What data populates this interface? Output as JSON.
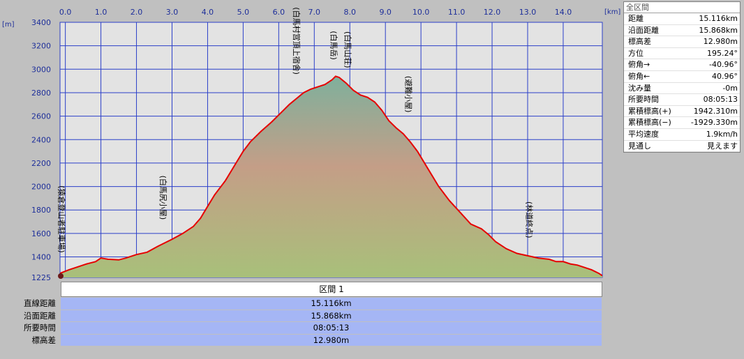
{
  "chart_data": {
    "type": "area",
    "x_unit": "[km]",
    "y_unit": "[m]",
    "xlim": [
      -0.15,
      15.1
    ],
    "ylim": [
      1225,
      3400
    ],
    "x_ticks": [
      0.0,
      1.0,
      2.0,
      3.0,
      4.0,
      5.0,
      6.0,
      7.0,
      8.0,
      9.0,
      10.0,
      11.0,
      12.0,
      13.0,
      14.0
    ],
    "x_tick_labels": [
      "0.0",
      "1.0",
      "2.0",
      "3.0",
      "4.0",
      "5.0",
      "6.0",
      "7.0",
      "8.0",
      "9.0",
      "10.0",
      "11.0",
      "12.0",
      "13.0",
      "14.0"
    ],
    "y_ticks": [
      1225,
      1400,
      1600,
      1800,
      2000,
      2200,
      2400,
      2600,
      2800,
      3000,
      3200,
      3400
    ],
    "y_tick_labels": [
      "1225",
      "1400",
      "1600",
      "1800",
      "2000",
      "2200",
      "2400",
      "2600",
      "2800",
      "3000",
      "3200",
      "3400"
    ],
    "grid": true,
    "series": [
      {
        "x": [
          -0.15,
          0.1,
          0.3,
          0.6,
          0.85,
          1.0,
          1.2,
          1.5,
          1.7,
          2.0,
          2.3,
          2.6,
          3.0,
          3.3,
          3.6,
          3.8,
          4.0,
          4.2,
          4.5,
          4.8,
          5.0,
          5.2,
          5.5,
          5.8,
          6.1,
          6.3,
          6.5,
          6.7,
          6.9,
          7.1,
          7.3,
          7.5,
          7.6,
          7.7,
          7.9,
          8.1,
          8.3,
          8.5,
          8.7,
          8.9,
          9.1,
          9.3,
          9.5,
          9.7,
          9.9,
          10.2,
          10.5,
          10.8,
          11.1,
          11.4,
          11.7,
          11.9,
          12.1,
          12.4,
          12.7,
          13.0,
          13.3,
          13.6,
          13.8,
          14.0,
          14.2,
          14.4,
          14.6,
          14.8,
          15.0,
          15.1
        ],
        "y": [
          1260,
          1290,
          1310,
          1340,
          1360,
          1390,
          1380,
          1375,
          1390,
          1420,
          1440,
          1490,
          1550,
          1600,
          1660,
          1730,
          1830,
          1930,
          2050,
          2200,
          2300,
          2380,
          2470,
          2550,
          2640,
          2700,
          2750,
          2800,
          2830,
          2850,
          2870,
          2910,
          2940,
          2930,
          2880,
          2820,
          2780,
          2760,
          2720,
          2650,
          2560,
          2500,
          2450,
          2380,
          2300,
          2150,
          2000,
          1880,
          1780,
          1680,
          1640,
          1590,
          1530,
          1470,
          1430,
          1410,
          1390,
          1380,
          1360,
          1360,
          1340,
          1330,
          1310,
          1290,
          1260,
          1240
        ]
      }
    ],
    "annotations": [
      {
        "text": "猿倉登山者駐車場",
        "x": -0.1,
        "y": 1260
      },
      {
        "text": "白馬尻小屋",
        "x": 2.75,
        "y": 1560
      },
      {
        "text": "白馬村営頂上宿舎",
        "x": 6.5,
        "y": 2780
      },
      {
        "text": "白馬岳",
        "x": 7.55,
        "y": 2935
      },
      {
        "text": "白馬山荘",
        "x": 7.95,
        "y": 2860
      },
      {
        "text": "避難小屋",
        "x": 9.65,
        "y": 2480
      },
      {
        "text": "林道終点",
        "x": 13.05,
        "y": 1410
      }
    ]
  },
  "summary_panel": {
    "title": "全区間",
    "rows": [
      {
        "label": "距離",
        "value": "15.116km"
      },
      {
        "label": "沿面距離",
        "value": "15.868km"
      },
      {
        "label": "標高差",
        "value": "12.980m"
      },
      {
        "label": "方位",
        "value": "195.24°"
      },
      {
        "label": "俯角→",
        "value": "-40.96°"
      },
      {
        "label": "俯角←",
        "value": "40.96°"
      },
      {
        "label": "沈み量",
        "value": "-0m"
      },
      {
        "label": "所要時間",
        "value": "08:05:13"
      },
      {
        "label": "累積標高(+)",
        "value": "1942.310m"
      },
      {
        "label": "累積標高(−)",
        "value": "-1929.330m"
      },
      {
        "label": "平均速度",
        "value": "1.9km/h"
      },
      {
        "label": "見通し",
        "value": "見えます"
      }
    ]
  },
  "section": {
    "header": "区間 1",
    "rows": [
      {
        "label": "直線距離",
        "value": "15.116km"
      },
      {
        "label": "沿面距離",
        "value": "15.868km"
      },
      {
        "label": "所要時間",
        "value": "08:05:13"
      },
      {
        "label": "標高差",
        "value": "12.980m"
      }
    ]
  },
  "colors": {
    "profile_line": "#e60000",
    "grid": "#2b3fc9",
    "plot_bg": "#e3e3e3",
    "fill_top": "#7fb09c",
    "fill_mid": "#c49e87",
    "fill_bottom": "#a8c07a",
    "section_bg": "#a5b6f5"
  }
}
